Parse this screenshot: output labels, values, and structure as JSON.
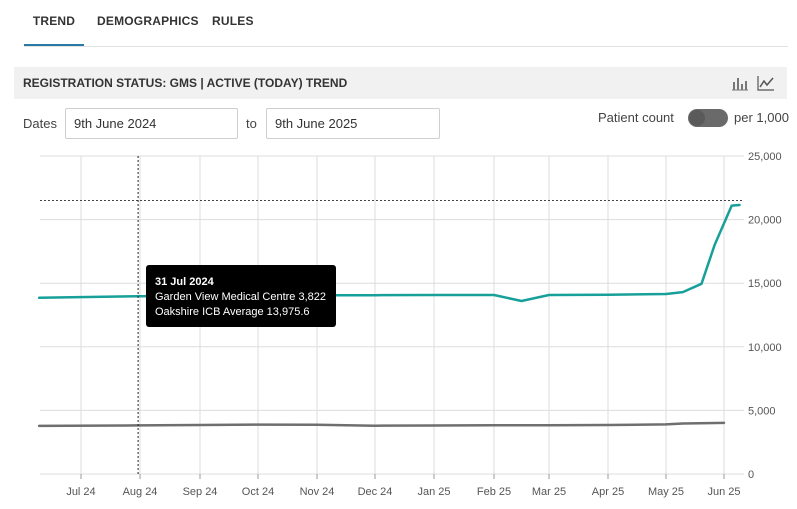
{
  "tabs": [
    {
      "label": "TREND",
      "active": true
    },
    {
      "label": "DEMOGRAPHICS",
      "active": false
    },
    {
      "label": "RULES",
      "active": false
    }
  ],
  "panel": {
    "title": "REGISTRATION STATUS: GMS | ACTIVE (TODAY) TREND",
    "icons": [
      "bar-chart-icon",
      "line-chart-icon"
    ]
  },
  "controls": {
    "dates_label": "Dates",
    "from_value": "9th June 2024",
    "to_label": "to",
    "to_value": "9th June 2025",
    "patient_count_label": "Patient count",
    "per_label": "per 1,000",
    "toggle_per_1000": false
  },
  "tooltip": {
    "date": "31 Jul 2024",
    "line1": "Garden View Medical Centre 3,822",
    "line2": "Oakshire ICB Average 13,975.6"
  },
  "colors": {
    "icb_series": "#17a09a",
    "practice_series": "#6f6f6f",
    "grid": "#dddddd"
  },
  "chart_data": {
    "type": "line",
    "x_tick_labels": [
      "Jul 24",
      "Aug 24",
      "Sep 24",
      "Oct 24",
      "Nov 24",
      "Dec 24",
      "Jan 25",
      "Feb 25",
      "Mar 25",
      "Apr 25",
      "May 25",
      "Jun 25"
    ],
    "y_tick_labels": [
      "0",
      "5,000",
      "10,000",
      "15,000",
      "20,000",
      "25,000"
    ],
    "ylim": [
      0,
      25000
    ],
    "y_axis_side": "right",
    "grid": true,
    "reference_line": 21500,
    "series": [
      {
        "name": "Oakshire ICB Average",
        "x": [
          "2024-06-09",
          "2024-07-31",
          "2024-09-01",
          "2024-10-01",
          "2024-11-01",
          "2024-12-01",
          "2025-01-01",
          "2025-02-01",
          "2025-02-15",
          "2025-03-01",
          "2025-03-15",
          "2025-04-01",
          "2025-05-01",
          "2025-05-10",
          "2025-05-20",
          "2025-05-27",
          "2025-06-05",
          "2025-06-09"
        ],
        "values": [
          13850,
          13975.6,
          14000,
          14030,
          14050,
          14060,
          14070,
          14070,
          13600,
          14070,
          14080,
          14090,
          14150,
          14300,
          14950,
          18000,
          21100,
          21150
        ]
      },
      {
        "name": "Garden View Medical Centre",
        "x": [
          "2024-06-09",
          "2024-07-31",
          "2024-09-01",
          "2024-10-01",
          "2024-11-01",
          "2024-12-01",
          "2025-01-01",
          "2025-02-01",
          "2025-03-01",
          "2025-04-01",
          "2025-05-01",
          "2025-05-10",
          "2025-06-01"
        ],
        "values": [
          3780,
          3822,
          3850,
          3880,
          3870,
          3800,
          3810,
          3830,
          3840,
          3850,
          3900,
          3970,
          4020
        ]
      }
    ]
  }
}
